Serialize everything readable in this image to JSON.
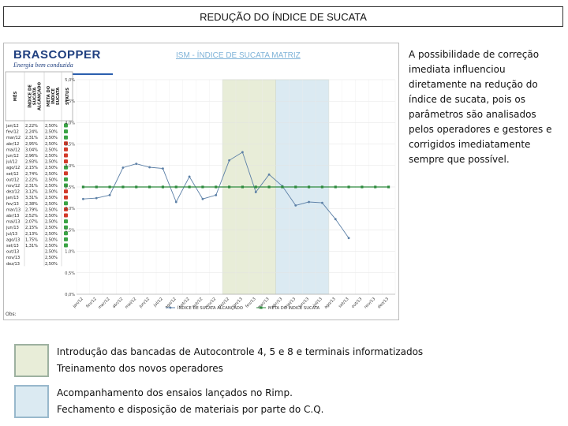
{
  "slide": {
    "title": "REDUÇÃO DO ÍNDICE DE SUCATA",
    "side_text": "A possibilidade de correção imediata influenciou diretamente na redução do índice de sucata, pois os parâmetros são analisados pelos operadores e gestores e corrigidos imediatamente sempre que possível.",
    "legend_green_line1": "Introdução das bancadas de Autocontrole 4, 5 e 8 e terminais informatizados",
    "legend_green_line2": "Treinamento dos novos operadores",
    "legend_blue_line1": "Acompanhamento dos ensaios lançados no Rimp.",
    "legend_blue_line2": "Fechamento e disposição de materiais por parte do C.Q.",
    "highlight_green": "#e8edd8",
    "highlight_blue": "#dbeaf2"
  },
  "logo": {
    "main": "BRASCOPPER",
    "sub": "Energia bem conduzida"
  },
  "figure": {
    "footer": "Obs:"
  },
  "chart_data": {
    "type": "line",
    "title": "ISM - ÍNDICE DE SUCATA MATRIZ",
    "table_headers": [
      "MÊS",
      "ÍNDICE DE SUCATA ALCANÇADO",
      "META DO ÍNDICE SUCATA",
      "STATUS"
    ],
    "categories": [
      "jan/12",
      "fev/12",
      "mar/12",
      "abr/12",
      "mai/12",
      "jun/12",
      "jul/12",
      "ago/12",
      "set/12",
      "out/12",
      "nov/12",
      "dez/12",
      "jan/13",
      "fev/13",
      "mar/13",
      "abr/13",
      "mai/13",
      "jun/13",
      "jul/13",
      "ago/13",
      "set/13",
      "out/13",
      "nov/13",
      "dez/13"
    ],
    "series": [
      {
        "name": "ÍNDICE DE SUCATA ALCANÇADO",
        "color": "#5b7fa6",
        "values": [
          2.22,
          2.24,
          2.31,
          2.95,
          3.04,
          2.96,
          2.93,
          2.15,
          2.74,
          2.22,
          2.31,
          3.12,
          3.31,
          2.38,
          2.79,
          2.52,
          2.07,
          2.15,
          2.13,
          1.75,
          1.31,
          null,
          null,
          null
        ]
      },
      {
        "name": "META DO ÍNDICE SUCATA",
        "color": "#2e8b3e",
        "values": [
          2.5,
          2.5,
          2.5,
          2.5,
          2.5,
          2.5,
          2.5,
          2.5,
          2.5,
          2.5,
          2.5,
          2.5,
          2.5,
          2.5,
          2.5,
          2.5,
          2.5,
          2.5,
          2.5,
          2.5,
          2.5,
          2.5,
          2.5,
          2.5
        ]
      }
    ],
    "table_values": [
      "2,22%",
      "2,24%",
      "2,31%",
      "2,95%",
      "3,04%",
      "2,96%",
      "2,93%",
      "2,15%",
      "2,74%",
      "2,22%",
      "2,31%",
      "3,12%",
      "3,31%",
      "2,38%",
      "2,79%",
      "2,52%",
      "2,07%",
      "2,15%",
      "2,13%",
      "1,75%",
      "1,31%",
      "",
      "",
      ""
    ],
    "table_goals": [
      "2,50%",
      "2,50%",
      "2,50%",
      "2,50%",
      "2,50%",
      "2,50%",
      "2,50%",
      "2,50%",
      "2,50%",
      "2,50%",
      "2,50%",
      "2,50%",
      "2,50%",
      "2,50%",
      "2,50%",
      "2,50%",
      "2,50%",
      "2,50%",
      "2,50%",
      "2,50%",
      "2,50%",
      "2,50%",
      "2,50%",
      "2,50%"
    ],
    "table_status": [
      "ok",
      "ok",
      "ok",
      "bad",
      "bad",
      "bad",
      "bad",
      "ok",
      "bad",
      "ok",
      "ok",
      "bad",
      "bad",
      "ok",
      "bad",
      "bad",
      "ok",
      "ok",
      "ok",
      "ok",
      "ok",
      "",
      "",
      ""
    ],
    "status_colors": {
      "ok": "#3aa344",
      "bad": "#d23a2a"
    },
    "x_tick_labels": [
      "jan/12",
      "fev/12",
      "mar/12",
      "abr/12",
      "mai/12",
      "jun/12",
      "jul/12",
      "ago/12",
      "set/12",
      "out/12",
      "nov/12",
      "dez/12",
      "jan/13",
      "fev/13",
      "mar/13",
      "abr/13",
      "mai/13",
      "jun/13",
      "jul/13",
      "ago/13",
      "set/13",
      "out/13",
      "nov/13",
      "dez/13"
    ],
    "y_ticks": [
      "0,0%",
      "0,5%",
      "1,0%",
      "1,5%",
      "2,0%",
      "2,5%",
      "3,0%",
      "3,5%",
      "4,0%",
      "4,5%",
      "5,0%"
    ],
    "ylim": [
      0,
      5
    ],
    "grid": true,
    "legend_position": "bottom",
    "highlight_ranges": [
      {
        "from": "dez/12",
        "to": "mar/13",
        "color": "#e8edd8"
      },
      {
        "from": "abr/13",
        "to": "jul/13",
        "color": "#dbeaf2"
      }
    ]
  }
}
